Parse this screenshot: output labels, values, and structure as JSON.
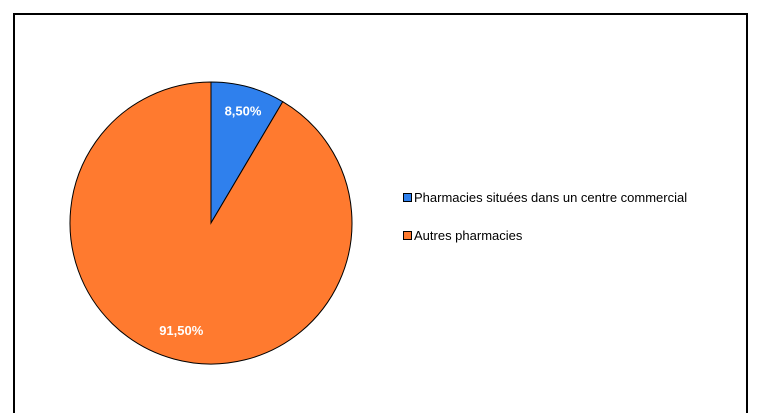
{
  "chart_data": {
    "type": "pie",
    "slices": [
      {
        "label": "Pharmacies situées dans un centre commercial",
        "value": 8.5,
        "display": "8,50%",
        "color": "#2f80ed"
      },
      {
        "label": "Autres pharmacies",
        "value": 91.5,
        "display": "91,50%",
        "color": "#ff7a2f"
      }
    ],
    "legend_position": "right",
    "start_angle_deg": 0,
    "direction": "clockwise"
  }
}
